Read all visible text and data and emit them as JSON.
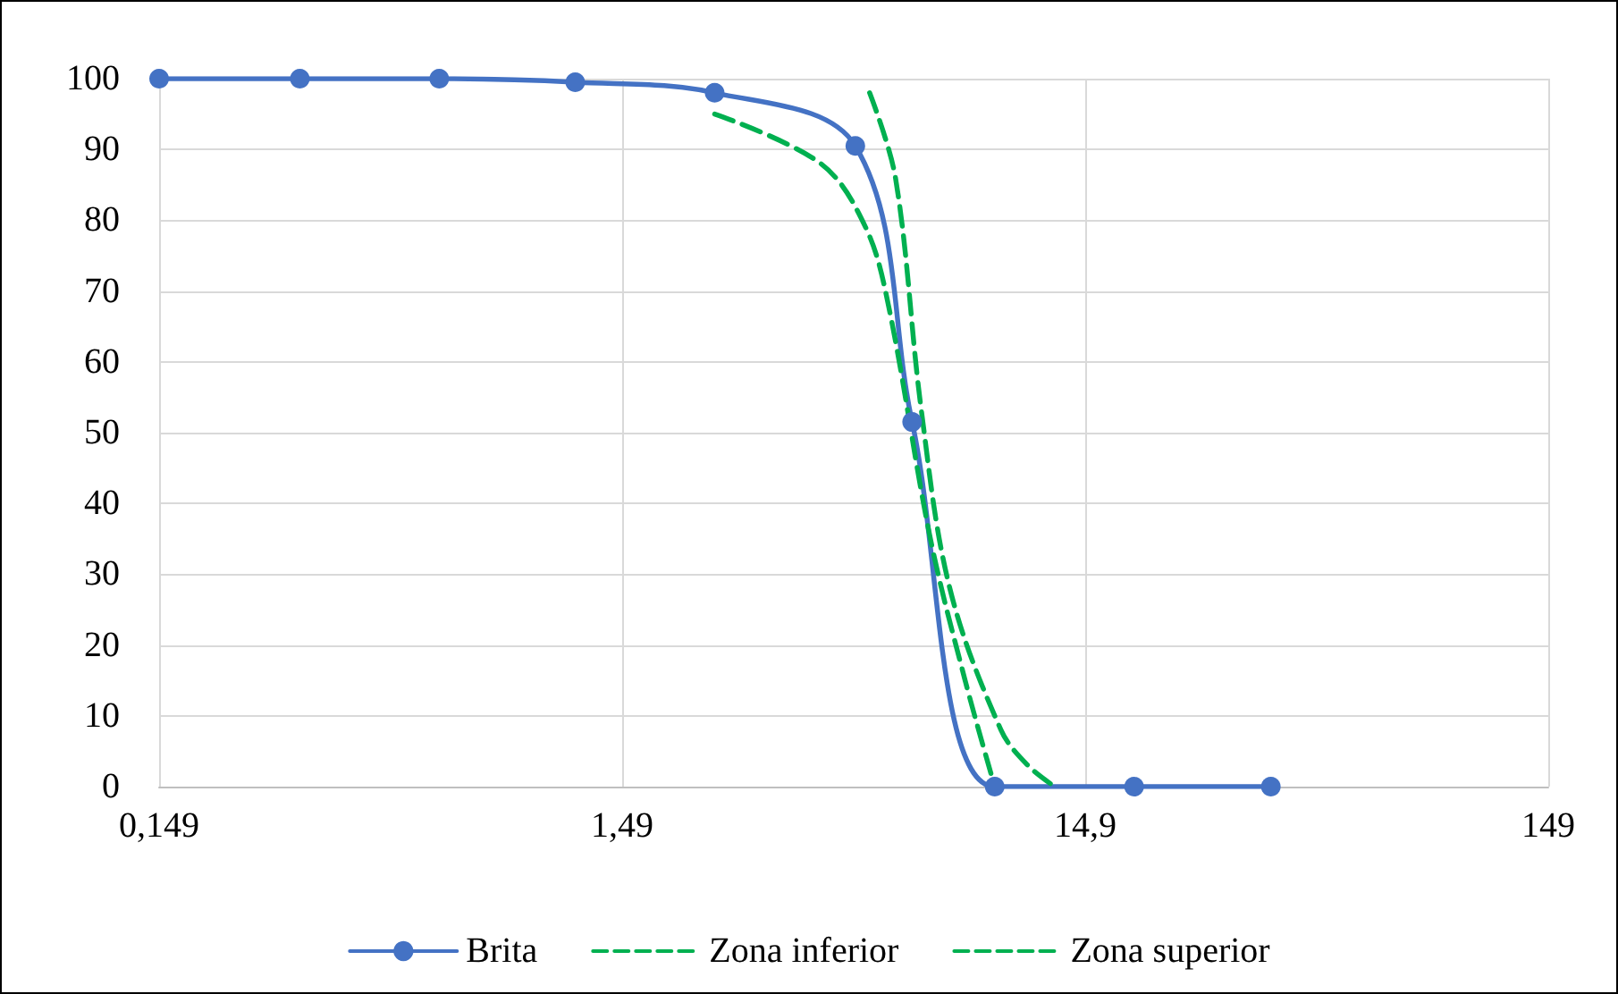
{
  "chart_data": {
    "type": "line",
    "log": "x",
    "grid": true,
    "legend": "bottom",
    "xlim": [
      0.149,
      149
    ],
    "xticks": [
      {
        "value": 0.149,
        "label": "0,149"
      },
      {
        "value": 1.49,
        "label": "1,49"
      },
      {
        "value": 14.9,
        "label": "14,9"
      },
      {
        "value": 149,
        "label": "149"
      }
    ],
    "ylim": [
      0,
      100
    ],
    "yticks": [
      0,
      10,
      20,
      30,
      40,
      50,
      60,
      70,
      80,
      90,
      100
    ],
    "series": [
      {
        "name": "Brita",
        "color": "#4472c4",
        "marker": "circle",
        "line_style": "solid",
        "x": [
          0.149,
          0.3,
          0.6,
          1.18,
          2.36,
          4.75,
          6.3,
          9.5,
          19,
          37.5
        ],
        "values": [
          100,
          100,
          100,
          99.5,
          98,
          90.5,
          51.5,
          0,
          0,
          0
        ]
      },
      {
        "name": "Zona inferior",
        "color": "#00b050",
        "marker": "none",
        "line_style": "dashed",
        "x": [
          2.36,
          4.0,
          5.0,
          5.6,
          6.9,
          8.2,
          9.5
        ],
        "values": [
          95,
          88,
          79,
          68,
          35,
          15,
          0
        ]
      },
      {
        "name": "Zona superior",
        "color": "#00b050",
        "marker": "none",
        "line_style": "dashed",
        "x": [
          5.1,
          5.8,
          6.6,
          7.6,
          9.8,
          11.2,
          12.8
        ],
        "values": [
          98,
          86,
          53,
          28,
          8,
          3,
          0
        ]
      }
    ]
  }
}
